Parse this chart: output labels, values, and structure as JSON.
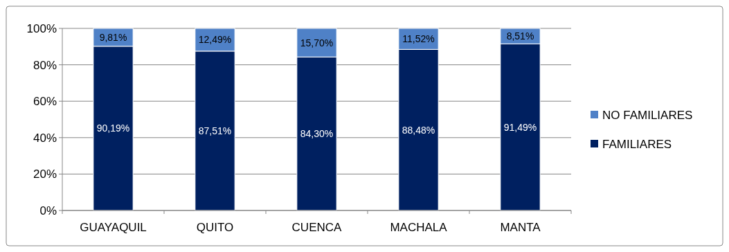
{
  "chart_data": {
    "type": "bar",
    "stacked": true,
    "categories": [
      "GUAYAQUIL",
      "QUITO",
      "CUENCA",
      "MACHALA",
      "MANTA"
    ],
    "series": [
      {
        "name": "FAMILIARES",
        "color": "#002060",
        "values": [
          90.19,
          87.51,
          84.3,
          88.48,
          91.49
        ],
        "value_labels": [
          "90,19%",
          "87,51%",
          "84,30%",
          "88,48%",
          "91,49%"
        ]
      },
      {
        "name": "NO FAMILIARES",
        "color": "#4f81c7",
        "values": [
          9.81,
          12.49,
          15.7,
          11.52,
          8.51
        ],
        "value_labels": [
          "9,81%",
          "12,49%",
          "15,70%",
          "11,52%",
          "8,51%"
        ]
      }
    ],
    "ylim": [
      0,
      100
    ],
    "yticks": [
      {
        "value": 0,
        "label": "0%"
      },
      {
        "value": 20,
        "label": "20%"
      },
      {
        "value": 40,
        "label": "40%"
      },
      {
        "value": 60,
        "label": "60%"
      },
      {
        "value": 80,
        "label": "80%"
      },
      {
        "value": 100,
        "label": "100%"
      }
    ],
    "grid": "y",
    "legend": "right"
  }
}
